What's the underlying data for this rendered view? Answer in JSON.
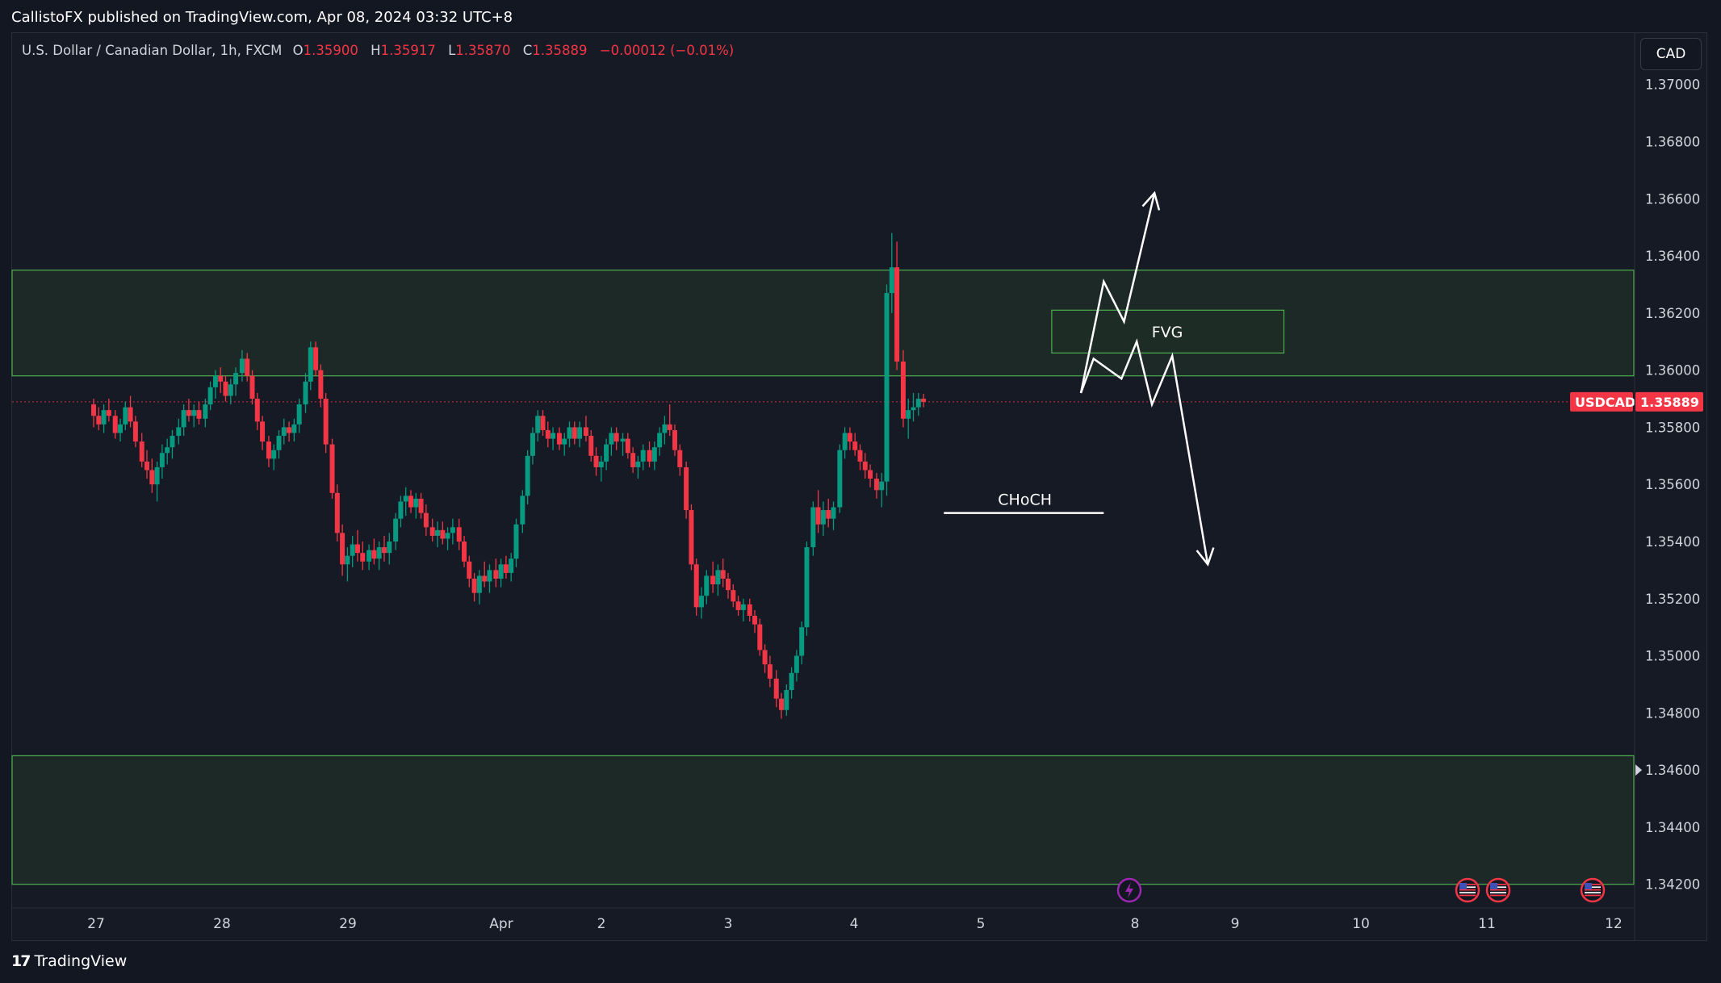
{
  "publisher_line": "CallistoFX published on TradingView.com, Apr 08, 2024 03:32 UTC+8",
  "legend": {
    "symbol_line": "U.S. Dollar / Canadian Dollar, 1h, FXCM",
    "open_label": "O",
    "open": "1.35900",
    "high_label": "H",
    "high": "1.35917",
    "low_label": "L",
    "low": "1.35870",
    "close_label": "C",
    "close": "1.35889",
    "change": "−0.00012 (−0.01%)"
  },
  "currency_button": "CAD",
  "footer": {
    "brand": "TradingView",
    "logo_icon": "tradingview-logo-icon"
  },
  "colors": {
    "background": "#131722",
    "up": "#089981",
    "down": "#f23645",
    "zone_fill": "#1e2d27",
    "zone_line": "#4caf50",
    "price_tag": "#f23645"
  },
  "chart_data": {
    "type": "candlestick",
    "symbol": "USDCAD",
    "timeframe": "1h",
    "y_axis": {
      "ylim": [
        1.3412,
        1.3718
      ],
      "ticks": [
        "1.37000",
        "1.36800",
        "1.36600",
        "1.36400",
        "1.36200",
        "1.36000",
        "1.35800",
        "1.35600",
        "1.35400",
        "1.35200",
        "1.35000",
        "1.34800",
        "1.34600",
        "1.34400",
        "1.34200"
      ]
    },
    "x_axis": {
      "ticks": [
        "27",
        "28",
        "29",
        "Apr",
        "2",
        "3",
        "4",
        "5",
        "8",
        "9",
        "10",
        "11",
        "12"
      ]
    },
    "last_price": {
      "label": "USDCAD",
      "value": "1.35889",
      "price": 1.35889
    },
    "zones": [
      {
        "name": "upper-supply-zone",
        "from": 1.3598,
        "to": 1.3635,
        "x_start": 0,
        "x_end": 1.0
      },
      {
        "name": "lower-demand-zone",
        "from": 1.342,
        "to": 1.3465,
        "x_start": 0,
        "x_end": 1.0
      },
      {
        "name": "fvg-zone",
        "label": "FVG",
        "from": 1.3606,
        "to": 1.3621,
        "x_start": 7.55,
        "x_end": 9.38
      }
    ],
    "annotations": [
      {
        "name": "choch-line",
        "label": "CHoCH",
        "price": 1.355,
        "x_start": 6.7,
        "x_end": 7.96
      },
      {
        "name": "bullish-path",
        "points": [
          [
            7.78,
            1.3592
          ],
          [
            7.96,
            1.3631
          ],
          [
            8.12,
            1.3617
          ],
          [
            8.36,
            1.3662
          ]
        ]
      },
      {
        "name": "bearish-path",
        "points": [
          [
            7.78,
            1.3592
          ],
          [
            7.88,
            1.3604
          ],
          [
            8.1,
            1.3597
          ],
          [
            8.22,
            1.361
          ],
          [
            8.34,
            1.3588
          ],
          [
            8.5,
            1.3605
          ],
          [
            8.78,
            1.3532
          ]
        ]
      }
    ],
    "candles": [
      [
        0.0,
        1.3588,
        1.359,
        1.358,
        1.3584
      ],
      [
        0.04,
        1.3584,
        1.3587,
        1.3579,
        1.3581
      ],
      [
        0.08,
        1.3581,
        1.3588,
        1.3578,
        1.3586
      ],
      [
        0.12,
        1.3586,
        1.359,
        1.3582,
        1.3584
      ],
      [
        0.17,
        1.3584,
        1.3586,
        1.3576,
        1.3578
      ],
      [
        0.21,
        1.3578,
        1.3583,
        1.3575,
        1.3581
      ],
      [
        0.25,
        1.3581,
        1.3589,
        1.3579,
        1.3587
      ],
      [
        0.29,
        1.3587,
        1.3591,
        1.358,
        1.3582
      ],
      [
        0.33,
        1.3582,
        1.3584,
        1.3573,
        1.3575
      ],
      [
        0.38,
        1.3575,
        1.3578,
        1.3566,
        1.3568
      ],
      [
        0.42,
        1.3568,
        1.3572,
        1.3562,
        1.3565
      ],
      [
        0.46,
        1.3565,
        1.3569,
        1.3557,
        1.356
      ],
      [
        0.5,
        1.356,
        1.3568,
        1.3554,
        1.3566
      ],
      [
        0.54,
        1.3566,
        1.3574,
        1.3562,
        1.3571
      ],
      [
        0.58,
        1.3571,
        1.3576,
        1.3567,
        1.3573
      ],
      [
        0.62,
        1.3573,
        1.3579,
        1.3569,
        1.3577
      ],
      [
        0.67,
        1.3577,
        1.3583,
        1.3574,
        1.358
      ],
      [
        0.71,
        1.358,
        1.3588,
        1.3577,
        1.3586
      ],
      [
        0.75,
        1.3586,
        1.359,
        1.3582,
        1.3584
      ],
      [
        0.79,
        1.3584,
        1.3588,
        1.358,
        1.3586
      ],
      [
        0.83,
        1.3586,
        1.3589,
        1.3581,
        1.3583
      ],
      [
        0.88,
        1.3583,
        1.359,
        1.358,
        1.3588
      ],
      [
        0.92,
        1.3588,
        1.3596,
        1.3586,
        1.3594
      ],
      [
        0.96,
        1.3594,
        1.36,
        1.359,
        1.3598
      ],
      [
        1.0,
        1.3598,
        1.3601,
        1.3592,
        1.3596
      ],
      [
        1.04,
        1.3596,
        1.3598,
        1.3589,
        1.3591
      ],
      [
        1.08,
        1.3591,
        1.3597,
        1.3588,
        1.3595
      ],
      [
        1.12,
        1.3595,
        1.3601,
        1.3591,
        1.3599
      ],
      [
        1.17,
        1.3599,
        1.3607,
        1.3596,
        1.3604
      ],
      [
        1.21,
        1.3604,
        1.3606,
        1.3596,
        1.3598
      ],
      [
        1.25,
        1.3598,
        1.36,
        1.3588,
        1.359
      ],
      [
        1.29,
        1.359,
        1.3592,
        1.3579,
        1.3582
      ],
      [
        1.33,
        1.3582,
        1.3584,
        1.3572,
        1.3575
      ],
      [
        1.38,
        1.3575,
        1.3577,
        1.3566,
        1.3569
      ],
      [
        1.42,
        1.3569,
        1.3574,
        1.3565,
        1.3572
      ],
      [
        1.46,
        1.3572,
        1.3579,
        1.3569,
        1.3577
      ],
      [
        1.5,
        1.3577,
        1.3583,
        1.3574,
        1.358
      ],
      [
        1.54,
        1.358,
        1.3582,
        1.3575,
        1.3578
      ],
      [
        1.58,
        1.3578,
        1.3583,
        1.3575,
        1.3581
      ],
      [
        1.62,
        1.3581,
        1.359,
        1.3578,
        1.3588
      ],
      [
        1.67,
        1.3588,
        1.3599,
        1.3585,
        1.3596
      ],
      [
        1.71,
        1.3596,
        1.361,
        1.3593,
        1.3608
      ],
      [
        1.75,
        1.3608,
        1.361,
        1.3598,
        1.36
      ],
      [
        1.79,
        1.36,
        1.3602,
        1.3587,
        1.359
      ],
      [
        1.83,
        1.359,
        1.3592,
        1.3571,
        1.3574
      ],
      [
        1.88,
        1.3574,
        1.3576,
        1.3555,
        1.3557
      ],
      [
        1.92,
        1.3557,
        1.356,
        1.354,
        1.3543
      ],
      [
        1.96,
        1.3543,
        1.3546,
        1.3528,
        1.3532
      ],
      [
        2.0,
        1.3532,
        1.3538,
        1.3526,
        1.3535
      ],
      [
        2.04,
        1.3535,
        1.3542,
        1.3531,
        1.3539
      ],
      [
        2.08,
        1.3539,
        1.3544,
        1.3533,
        1.3536
      ],
      [
        2.12,
        1.3536,
        1.354,
        1.353,
        1.3533
      ],
      [
        2.17,
        1.3533,
        1.3539,
        1.353,
        1.3537
      ],
      [
        2.21,
        1.3537,
        1.3541,
        1.3532,
        1.3534
      ],
      [
        2.25,
        1.3534,
        1.354,
        1.353,
        1.3538
      ],
      [
        2.29,
        1.3538,
        1.3542,
        1.3533,
        1.3536
      ],
      [
        2.33,
        1.3536,
        1.3543,
        1.3532,
        1.354
      ],
      [
        2.38,
        1.354,
        1.355,
        1.3537,
        1.3548
      ],
      [
        2.42,
        1.3548,
        1.3556,
        1.3545,
        1.3554
      ],
      [
        2.46,
        1.3554,
        1.3559,
        1.3549,
        1.3556
      ],
      [
        2.5,
        1.3556,
        1.3558,
        1.355,
        1.3552
      ],
      [
        2.54,
        1.3552,
        1.3557,
        1.3548,
        1.3555
      ],
      [
        2.58,
        1.3555,
        1.3557,
        1.3548,
        1.355
      ],
      [
        2.62,
        1.355,
        1.3553,
        1.3542,
        1.3545
      ],
      [
        2.67,
        1.3545,
        1.3548,
        1.354,
        1.3542
      ],
      [
        2.71,
        1.3542,
        1.3547,
        1.3538,
        1.3544
      ],
      [
        2.75,
        1.3544,
        1.3547,
        1.3539,
        1.3541
      ],
      [
        2.79,
        1.3541,
        1.3545,
        1.3537,
        1.3543
      ],
      [
        2.83,
        1.3543,
        1.3548,
        1.3539,
        1.3545
      ],
      [
        2.88,
        1.3545,
        1.3548,
        1.3537,
        1.354
      ],
      [
        2.92,
        1.354,
        1.3542,
        1.3531,
        1.3533
      ],
      [
        2.96,
        1.3533,
        1.3535,
        1.3524,
        1.3527
      ],
      [
        3.0,
        1.3527,
        1.3529,
        1.3519,
        1.3522
      ],
      [
        3.04,
        1.3522,
        1.353,
        1.3518,
        1.3528
      ],
      [
        3.08,
        1.3528,
        1.3533,
        1.3524,
        1.3526
      ],
      [
        3.12,
        1.3526,
        1.3532,
        1.3522,
        1.353
      ],
      [
        3.17,
        1.353,
        1.3534,
        1.3524,
        1.3527
      ],
      [
        3.21,
        1.3527,
        1.3534,
        1.3524,
        1.3532
      ],
      [
        3.25,
        1.3532,
        1.3535,
        1.3527,
        1.3529
      ],
      [
        3.29,
        1.3529,
        1.3536,
        1.3526,
        1.3534
      ],
      [
        3.33,
        1.3534,
        1.3548,
        1.3531,
        1.3546
      ],
      [
        3.38,
        1.3546,
        1.3558,
        1.3543,
        1.3556
      ],
      [
        3.42,
        1.3556,
        1.3572,
        1.3553,
        1.357
      ],
      [
        3.46,
        1.357,
        1.358,
        1.3567,
        1.3578
      ],
      [
        3.5,
        1.3578,
        1.3586,
        1.3575,
        1.3584
      ],
      [
        3.54,
        1.3584,
        1.3586,
        1.3577,
        1.3579
      ],
      [
        3.58,
        1.3579,
        1.3582,
        1.3573,
        1.3576
      ],
      [
        3.62,
        1.3576,
        1.358,
        1.3572,
        1.3578
      ],
      [
        3.67,
        1.3578,
        1.358,
        1.3572,
        1.3574
      ],
      [
        3.71,
        1.3574,
        1.3578,
        1.357,
        1.3576
      ],
      [
        3.75,
        1.3576,
        1.3582,
        1.3573,
        1.358
      ],
      [
        3.79,
        1.358,
        1.3582,
        1.3574,
        1.3576
      ],
      [
        3.83,
        1.3576,
        1.3582,
        1.3573,
        1.358
      ],
      [
        3.88,
        1.358,
        1.3584,
        1.3575,
        1.3577
      ],
      [
        3.92,
        1.3577,
        1.3579,
        1.3568,
        1.357
      ],
      [
        3.96,
        1.357,
        1.3573,
        1.3563,
        1.3566
      ],
      [
        4.0,
        1.3566,
        1.357,
        1.3561,
        1.3568
      ],
      [
        4.04,
        1.3568,
        1.3576,
        1.3565,
        1.3574
      ],
      [
        4.08,
        1.3574,
        1.358,
        1.357,
        1.3578
      ],
      [
        4.12,
        1.3578,
        1.358,
        1.3572,
        1.3575
      ],
      [
        4.17,
        1.3575,
        1.3578,
        1.357,
        1.3576
      ],
      [
        4.21,
        1.3576,
        1.3578,
        1.3569,
        1.3571
      ],
      [
        4.25,
        1.3571,
        1.3573,
        1.3564,
        1.3566
      ],
      [
        4.29,
        1.3566,
        1.357,
        1.3562,
        1.3568
      ],
      [
        4.33,
        1.3568,
        1.3574,
        1.3565,
        1.3572
      ],
      [
        4.38,
        1.3572,
        1.3575,
        1.3566,
        1.3568
      ],
      [
        4.42,
        1.3568,
        1.3575,
        1.3565,
        1.3573
      ],
      [
        4.46,
        1.3573,
        1.358,
        1.357,
        1.3578
      ],
      [
        4.5,
        1.3578,
        1.3584,
        1.3574,
        1.3581
      ],
      [
        4.54,
        1.3581,
        1.3588,
        1.3577,
        1.3579
      ],
      [
        4.58,
        1.3579,
        1.3581,
        1.357,
        1.3572
      ],
      [
        4.62,
        1.3572,
        1.3574,
        1.3563,
        1.3566
      ],
      [
        4.67,
        1.3566,
        1.3568,
        1.3548,
        1.3551
      ],
      [
        4.71,
        1.3551,
        1.3553,
        1.353,
        1.3532
      ],
      [
        4.75,
        1.3532,
        1.3534,
        1.3514,
        1.3517
      ],
      [
        4.79,
        1.3517,
        1.3524,
        1.3513,
        1.3521
      ],
      [
        4.83,
        1.3521,
        1.353,
        1.3518,
        1.3528
      ],
      [
        4.88,
        1.3528,
        1.3533,
        1.3522,
        1.3525
      ],
      [
        4.92,
        1.3525,
        1.3532,
        1.3521,
        1.353
      ],
      [
        4.96,
        1.353,
        1.3534,
        1.3524,
        1.3527
      ],
      [
        5.0,
        1.3527,
        1.3529,
        1.352,
        1.3523
      ],
      [
        5.04,
        1.3523,
        1.3525,
        1.3517,
        1.3519
      ],
      [
        5.08,
        1.3519,
        1.3521,
        1.3514,
        1.3516
      ],
      [
        5.12,
        1.3516,
        1.352,
        1.3512,
        1.3518
      ],
      [
        5.17,
        1.3518,
        1.352,
        1.3512,
        1.3514
      ],
      [
        5.21,
        1.3514,
        1.3516,
        1.3508,
        1.3511
      ],
      [
        5.25,
        1.3511,
        1.3513,
        1.35,
        1.3502
      ],
      [
        5.29,
        1.3502,
        1.3504,
        1.3494,
        1.3497
      ],
      [
        5.33,
        1.3497,
        1.35,
        1.3489,
        1.3492
      ],
      [
        5.38,
        1.3492,
        1.3495,
        1.3482,
        1.3485
      ],
      [
        5.42,
        1.3485,
        1.3487,
        1.3478,
        1.3481
      ],
      [
        5.46,
        1.3481,
        1.349,
        1.3479,
        1.3488
      ],
      [
        5.5,
        1.3488,
        1.3496,
        1.3485,
        1.3494
      ],
      [
        5.54,
        1.3494,
        1.3502,
        1.3491,
        1.35
      ],
      [
        5.58,
        1.35,
        1.3512,
        1.3497,
        1.351
      ],
      [
        5.62,
        1.351,
        1.354,
        1.3507,
        1.3538
      ],
      [
        5.67,
        1.3538,
        1.3554,
        1.3535,
        1.3552
      ],
      [
        5.71,
        1.3552,
        1.3558,
        1.3543,
        1.3546
      ],
      [
        5.75,
        1.3546,
        1.3554,
        1.3542,
        1.3551
      ],
      [
        5.79,
        1.3551,
        1.3555,
        1.3545,
        1.3548
      ],
      [
        5.83,
        1.3548,
        1.3554,
        1.3544,
        1.3552
      ],
      [
        5.88,
        1.3552,
        1.3574,
        1.355,
        1.3572
      ],
      [
        5.92,
        1.3572,
        1.358,
        1.3569,
        1.3578
      ],
      [
        5.96,
        1.3578,
        1.358,
        1.3572,
        1.3575
      ],
      [
        6.0,
        1.3575,
        1.3578,
        1.357,
        1.3572
      ],
      [
        6.04,
        1.3572,
        1.3574,
        1.3565,
        1.3568
      ],
      [
        6.08,
        1.3568,
        1.3571,
        1.3562,
        1.3565
      ],
      [
        6.12,
        1.3565,
        1.3567,
        1.3559,
        1.3562
      ],
      [
        6.17,
        1.3562,
        1.3564,
        1.3555,
        1.3558
      ],
      [
        6.21,
        1.3558,
        1.3564,
        1.3552,
        1.3561
      ],
      [
        6.25,
        1.3561,
        1.363,
        1.3556,
        1.3627
      ],
      [
        6.29,
        1.3627,
        1.3648,
        1.362,
        1.3636
      ],
      [
        6.33,
        1.3636,
        1.3645,
        1.36,
        1.3603
      ],
      [
        6.38,
        1.3603,
        1.3607,
        1.358,
        1.3583
      ],
      [
        6.42,
        1.3583,
        1.359,
        1.3576,
        1.3586
      ],
      [
        6.46,
        1.3586,
        1.3592,
        1.3582,
        1.3587
      ],
      [
        6.5,
        1.3587,
        1.3592,
        1.3584,
        1.359
      ],
      [
        6.54,
        1.359,
        1.35917,
        1.3587,
        1.35889
      ]
    ]
  }
}
